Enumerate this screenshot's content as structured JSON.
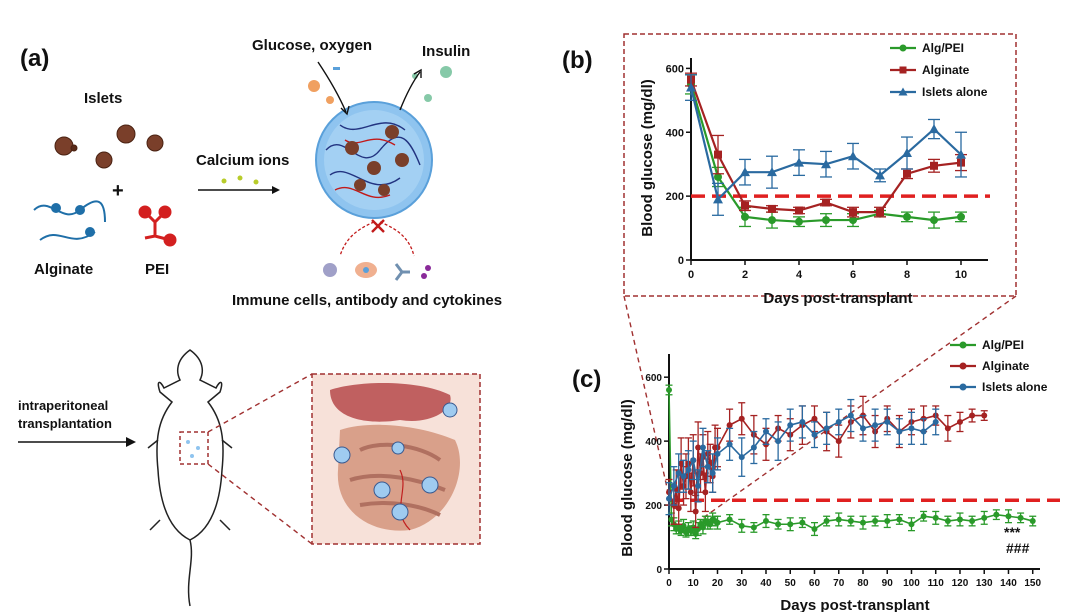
{
  "panel_a": {
    "label": "(a)",
    "islets": "Islets",
    "plus": "+",
    "alginate": "Alginate",
    "pei": "PEI",
    "calcium": "Calcium ions",
    "glucose": "Glucose, oxygen",
    "insulin": "Insulin",
    "immune": "Immune cells, antibody and cytokines",
    "route": [
      "intraperitoneal",
      "transplantation"
    ]
  },
  "colors": {
    "alg_pei": "#2a9a2a",
    "alginate": "#a52222",
    "islets_alone": "#2a6aa0",
    "threshold": "#e02020",
    "frame": "#a03030"
  },
  "chart_data": [
    {
      "panel_label": "(b)",
      "type": "line",
      "xlabel": "Days post-transplant",
      "ylabel": "Blood glucose (mg/dl)",
      "xlim": [
        0,
        11
      ],
      "ylim": [
        0,
        620
      ],
      "xticks": [
        "0",
        "2",
        "4",
        "6",
        "8",
        "10"
      ],
      "yticks": [
        "0",
        "200",
        "400",
        "600"
      ],
      "threshold": 200,
      "legend_position": "top-right",
      "series": [
        {
          "name": "Alg/PEI",
          "color": "#2a9a2a",
          "marker": "circle",
          "x": [
            0,
            1,
            2,
            3,
            4,
            5,
            6,
            7,
            8,
            9,
            10
          ],
          "y": [
            550,
            260,
            135,
            125,
            120,
            125,
            125,
            145,
            135,
            125,
            135
          ],
          "err": [
            30,
            30,
            30,
            25,
            15,
            20,
            20,
            10,
            15,
            25,
            15
          ]
        },
        {
          "name": "Alginate",
          "color": "#a52222",
          "marker": "square",
          "x": [
            0,
            1,
            2,
            3,
            4,
            5,
            6,
            7,
            8,
            9,
            10
          ],
          "y": [
            565,
            330,
            170,
            160,
            155,
            180,
            150,
            150,
            270,
            295,
            305
          ],
          "err": [
            20,
            60,
            15,
            10,
            10,
            10,
            15,
            15,
            15,
            20,
            25
          ]
        },
        {
          "name": "Islets alone",
          "color": "#2a6aa0",
          "marker": "triangle",
          "x": [
            0,
            1,
            2,
            3,
            4,
            5,
            6,
            7,
            8,
            9,
            10
          ],
          "y": [
            540,
            190,
            275,
            275,
            305,
            300,
            325,
            265,
            335,
            410,
            330
          ],
          "err": [
            40,
            50,
            40,
            50,
            40,
            40,
            40,
            20,
            50,
            30,
            70
          ]
        }
      ]
    },
    {
      "panel_label": "(c)",
      "type": "line",
      "xlabel": "Days post-transplant",
      "ylabel": "Blood glucose (mg/dl)",
      "xlim": [
        0,
        153
      ],
      "ylim": [
        0,
        660
      ],
      "xticks": [
        "0",
        "10",
        "20",
        "30",
        "40",
        "50",
        "60",
        "70",
        "80",
        "90",
        "100",
        "110",
        "120",
        "130",
        "140",
        "150"
      ],
      "yticks": [
        "0",
        "200",
        "400",
        "600"
      ],
      "threshold": 215,
      "significance": [
        "***",
        "###"
      ],
      "legend_position": "top-right",
      "series": [
        {
          "name": "Alg/PEI",
          "color": "#2a9a2a",
          "x": [
            0,
            1,
            2,
            3,
            4,
            5,
            6,
            7,
            8,
            9,
            10,
            11,
            12,
            13,
            14,
            15,
            16,
            17,
            18,
            19,
            20,
            25,
            30,
            35,
            40,
            45,
            50,
            55,
            60,
            65,
            70,
            75,
            80,
            85,
            90,
            95,
            100,
            105,
            110,
            115,
            120,
            125,
            130,
            135,
            140,
            145,
            150
          ],
          "y": [
            560,
            155,
            140,
            125,
            130,
            120,
            135,
            115,
            125,
            120,
            130,
            110,
            125,
            140,
            130,
            150,
            145,
            140,
            155,
            150,
            145,
            155,
            135,
            130,
            150,
            140,
            140,
            145,
            125,
            150,
            155,
            150,
            145,
            150,
            150,
            155,
            140,
            165,
            160,
            150,
            155,
            150,
            160,
            170,
            165,
            160,
            150
          ],
          "err": [
            15,
            20,
            20,
            15,
            20,
            15,
            20,
            15,
            20,
            15,
            20,
            15,
            20,
            15,
            20,
            15,
            20,
            15,
            20,
            15,
            20,
            15,
            20,
            15,
            20,
            15,
            20,
            15,
            20,
            15,
            20,
            15,
            20,
            15,
            20,
            15,
            20,
            15,
            20,
            15,
            20,
            15,
            20,
            15,
            20,
            15,
            15
          ]
        },
        {
          "name": "Alginate",
          "color": "#a52222",
          "x": [
            0,
            2,
            3,
            4,
            5,
            6,
            7,
            8,
            9,
            10,
            11,
            12,
            13,
            14,
            15,
            16,
            17,
            18,
            19,
            20,
            25,
            30,
            35,
            40,
            45,
            50,
            55,
            60,
            65,
            70,
            75,
            80,
            85,
            90,
            95,
            100,
            105,
            110,
            115,
            120,
            125,
            130
          ],
          "y": [
            240,
            200,
            250,
            190,
            330,
            260,
            290,
            330,
            240,
            340,
            180,
            380,
            300,
            350,
            240,
            360,
            330,
            290,
            380,
            380,
            450,
            470,
            420,
            390,
            440,
            420,
            450,
            470,
            430,
            400,
            460,
            480,
            430,
            470,
            430,
            460,
            470,
            480,
            440,
            460,
            480,
            480
          ],
          "err": [
            40,
            60,
            60,
            50,
            80,
            60,
            70,
            80,
            60,
            80,
            50,
            80,
            60,
            70,
            60,
            70,
            60,
            50,
            70,
            60,
            50,
            50,
            60,
            50,
            40,
            50,
            60,
            40,
            60,
            50,
            50,
            60,
            50,
            40,
            50,
            40,
            40,
            30,
            40,
            30,
            20,
            15
          ]
        },
        {
          "name": "Islets alone",
          "color": "#2a6aa0",
          "x": [
            0,
            2,
            4,
            6,
            8,
            10,
            12,
            14,
            16,
            18,
            20,
            25,
            30,
            35,
            40,
            45,
            50,
            55,
            60,
            65,
            70,
            75,
            80,
            85,
            90,
            95,
            100,
            105,
            110
          ],
          "y": [
            220,
            260,
            300,
            290,
            310,
            340,
            260,
            380,
            320,
            300,
            360,
            390,
            350,
            380,
            430,
            400,
            450,
            460,
            420,
            440,
            460,
            480,
            440,
            450,
            460,
            430,
            440,
            430,
            460
          ],
          "err": [
            50,
            60,
            60,
            50,
            60,
            60,
            50,
            60,
            50,
            60,
            50,
            50,
            60,
            50,
            40,
            60,
            50,
            50,
            40,
            50,
            40,
            50,
            40,
            50,
            40,
            40,
            50,
            40,
            40
          ]
        }
      ]
    }
  ]
}
